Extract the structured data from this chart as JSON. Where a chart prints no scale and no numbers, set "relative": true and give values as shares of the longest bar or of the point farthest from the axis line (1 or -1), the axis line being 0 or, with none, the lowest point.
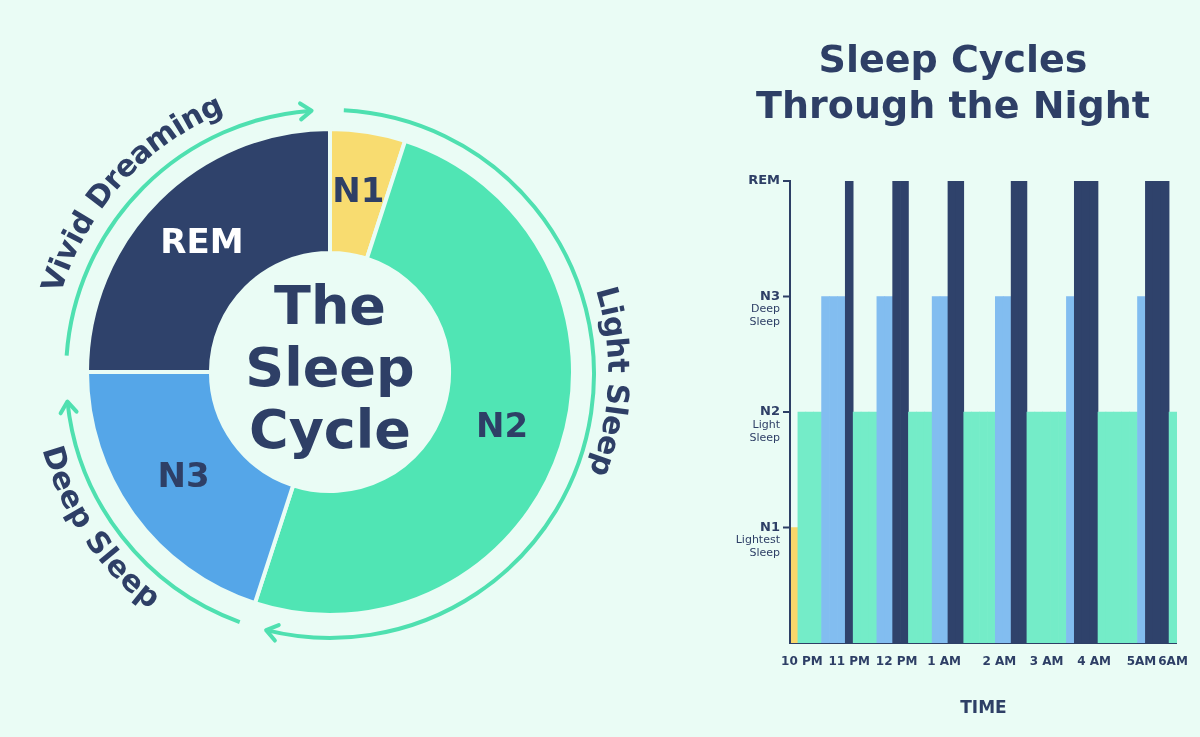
{
  "chart_data": [
    {
      "type": "donut",
      "title": "The Sleep Cycle",
      "categories": [
        "N1",
        "N2",
        "N3",
        "REM"
      ],
      "values": [
        5,
        50,
        20,
        25
      ],
      "colors": [
        "#f8dc70",
        "#50e5b4",
        "#55a6e8",
        "#2f426b"
      ],
      "annotations": [
        "Vivid Dreaming",
        "Light Sleep",
        "Deep Sleep"
      ]
    },
    {
      "type": "bar",
      "title": "Sleep Cycles Through the Night",
      "xlabel": "TIME",
      "categories": [
        null,
        "10 PM",
        null,
        null,
        null,
        null,
        null,
        "11 PM",
        null,
        null,
        null,
        null,
        null,
        "12 PM",
        null,
        null,
        null,
        null,
        null,
        "1 AM",
        null,
        null,
        null,
        null,
        null,
        null,
        "2 AM",
        null,
        null,
        null,
        null,
        null,
        "3 AM",
        null,
        null,
        null,
        null,
        null,
        "4 AM",
        null,
        null,
        null,
        null,
        null,
        "5AM",
        null,
        null,
        null,
        "6AM"
      ],
      "relative": true,
      "values": [
        0.25,
        0.5,
        0.5,
        0.5,
        0.75,
        0.75,
        0.75,
        1,
        0.5,
        0.5,
        0.5,
        0.75,
        0.75,
        1,
        1,
        0.5,
        0.5,
        0.5,
        0.75,
        0.75,
        1,
        1,
        0.5,
        0.5,
        0.5,
        0.5,
        0.75,
        0.75,
        1,
        1,
        0.5,
        0.5,
        0.5,
        0.5,
        0.5,
        0.75,
        1,
        1,
        1,
        0.5,
        0.5,
        0.5,
        0.5,
        0.5,
        0.75,
        1,
        1,
        1,
        0.5
      ],
      "colors": [
        "#f8d66a",
        "#74ecc8",
        "#74ecc8",
        "#74ecc8",
        "#82bdf0",
        "#82bdf0",
        "#82bdf0",
        "#2f426b",
        "#74ecc8",
        "#74ecc8",
        "#74ecc8",
        "#82bdf0",
        "#82bdf0",
        "#2f426b",
        "#2f426b",
        "#74ecc8",
        "#74ecc8",
        "#74ecc8",
        "#82bdf0",
        "#82bdf0",
        "#2f426b",
        "#2f426b",
        "#74ecc8",
        "#74ecc8",
        "#74ecc8",
        "#74ecc8",
        "#82bdf0",
        "#82bdf0",
        "#2f426b",
        "#2f426b",
        "#74ecc8",
        "#74ecc8",
        "#74ecc8",
        "#74ecc8",
        "#74ecc8",
        "#82bdf0",
        "#2f426b",
        "#2f426b",
        "#2f426b",
        "#74ecc8",
        "#74ecc8",
        "#74ecc8",
        "#74ecc8",
        "#74ecc8",
        "#82bdf0",
        "#2f426b",
        "#2f426b",
        "#2f426b",
        "#74ecc8"
      ],
      "annotations": [
        "N1\nLightest Sleep",
        "N2\nLight Sleep",
        "N3\nDeep Sleep",
        "REM"
      ]
    }
  ]
}
